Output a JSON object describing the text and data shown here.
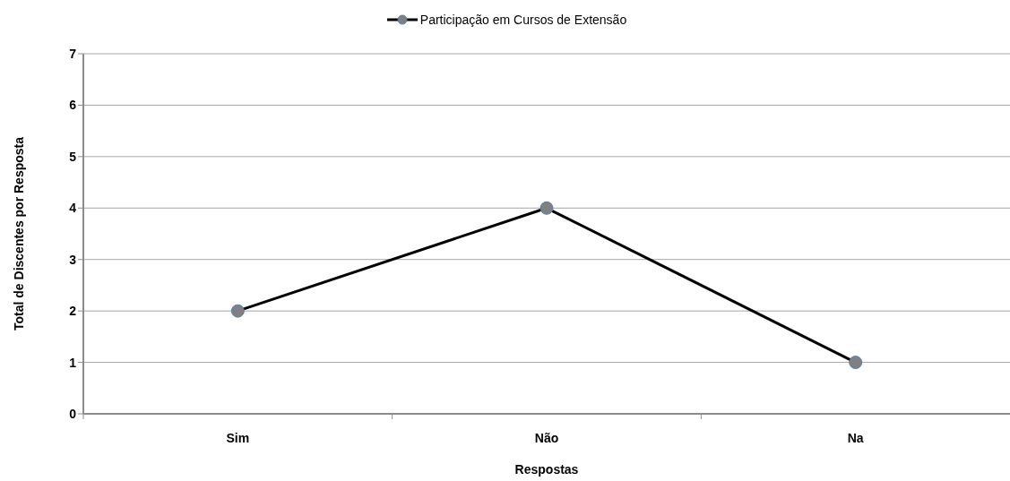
{
  "chart_data": {
    "type": "line",
    "categories": [
      "Sim",
      "Não",
      "Na"
    ],
    "series": [
      {
        "name": "Participação em Cursos de Extensão",
        "color": "#000000",
        "values": [
          2,
          4,
          1
        ]
      }
    ],
    "xlabel": "Respostas",
    "ylabel": "Total de Discentes por Resposta",
    "ylim": [
      0,
      7
    ],
    "yticks": [
      0,
      1,
      2,
      3,
      4,
      5,
      6,
      7
    ],
    "grid": "y",
    "legend": "top",
    "marker": "circle",
    "line_style": "solid"
  }
}
